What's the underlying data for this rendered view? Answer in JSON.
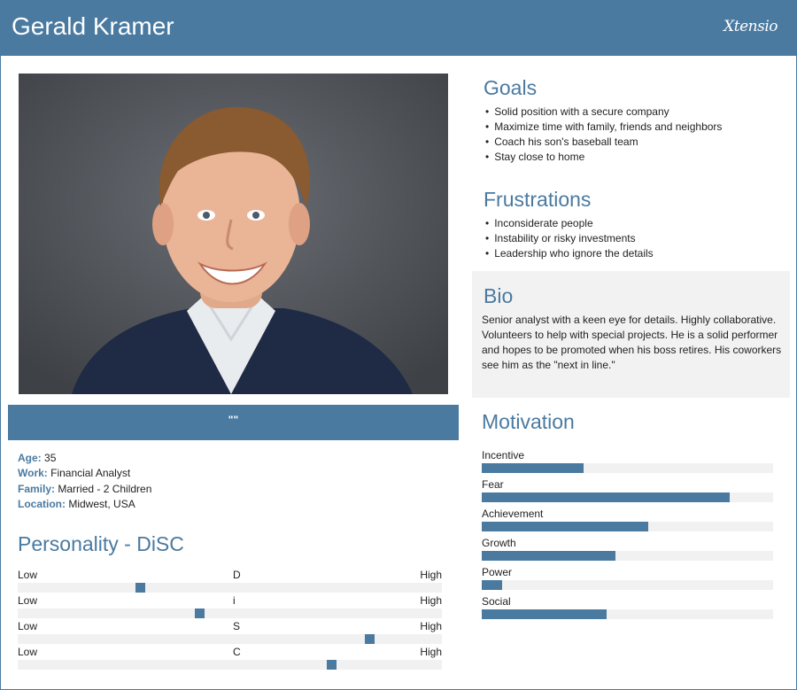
{
  "header": {
    "name": "Gerald Kramer",
    "logo": "Xtensio"
  },
  "photo": {
    "icon": "person-photo"
  },
  "quote": "\"\"",
  "info": {
    "age_label": "Age:",
    "age": "35",
    "work_label": "Work:",
    "work": "Financial Analyst",
    "family_label": "Family:",
    "family": "Married - 2 Children",
    "location_label": "Location:",
    "location": "Midwest, USA"
  },
  "personality": {
    "title": "Personality - DiSC",
    "low_label": "Low",
    "high_label": "High",
    "traits": [
      {
        "name": "D",
        "level": 0.29
      },
      {
        "name": "i",
        "level": 0.43
      },
      {
        "name": "S",
        "level": 0.83
      },
      {
        "name": "C",
        "level": 0.74
      }
    ]
  },
  "goals": {
    "title": "Goals",
    "items": [
      "Solid position with a secure company",
      "Maximize time with family, friends and neighbors",
      "Coach his son's baseball team",
      "Stay close to home"
    ]
  },
  "frustrations": {
    "title": "Frustrations",
    "items": [
      "Inconsiderate people",
      "Instability or risky investments",
      "Leadership who ignore the details"
    ]
  },
  "bio": {
    "title": "Bio",
    "text": "Senior analyst with a keen eye for details. Highly collaborative. Volunteers to help with special projects. He is a solid performer and hopes to be promoted when his boss retires. His coworkers see him as the \"next in line.\""
  },
  "motivation": {
    "title": "Motivation",
    "items": [
      {
        "label": "Incentive",
        "level": 0.35
      },
      {
        "label": "Fear",
        "level": 0.85
      },
      {
        "label": "Achievement",
        "level": 0.57
      },
      {
        "label": "Growth",
        "level": 0.46
      },
      {
        "label": "Power",
        "level": 0.07
      },
      {
        "label": "Social",
        "level": 0.43
      }
    ]
  },
  "colors": {
    "accent": "#4a7aa0",
    "track": "#f1f1f1",
    "bio_bg": "#f2f2f2"
  }
}
